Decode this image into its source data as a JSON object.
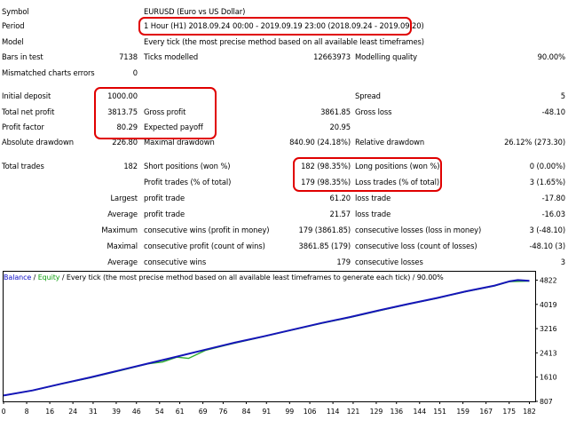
{
  "report": {
    "symbol_label": "Symbol",
    "symbol_value": "EURUSD (Euro vs US Dollar)",
    "period_label": "Period",
    "period_value": "1 Hour (H1) 2018.09.24 00:00 - 2019.09.19 23:00 (2018.09.24 - 2019.09.20)",
    "model_label": "Model",
    "model_value": "Every tick (the most precise method based on all available least timeframes)",
    "bars_label": "Bars in test",
    "bars_value": "7138",
    "ticks_label": "Ticks modelled",
    "ticks_value": "12663973",
    "quality_label": "Modelling quality",
    "quality_value": "90.00%",
    "mismatch_label": "Mismatched charts errors",
    "mismatch_value": "0",
    "deposit_label": "Initial deposit",
    "deposit_value": "1000.00",
    "spread_label": "Spread",
    "spread_value": "5",
    "netprofit_label": "Total net profit",
    "netprofit_value": "3813.75",
    "grossprofit_label": "Gross profit",
    "grossprofit_value": "3861.85",
    "grossloss_label": "Gross loss",
    "grossloss_value": "-48.10",
    "pf_label": "Profit factor",
    "pf_value": "80.29",
    "payoff_label": "Expected payoff",
    "payoff_value": "20.95",
    "absdd_label": "Absolute drawdown",
    "absdd_value": "226.80",
    "maxdd_label": "Maximal drawdown",
    "maxdd_value": "840.90 (24.18%)",
    "reldd_label": "Relative drawdown",
    "reldd_value": "26.12% (273.30)",
    "trades_label": "Total trades",
    "trades_value": "182",
    "short_label": "Short positions (won %)",
    "short_value": "182 (98.35%)",
    "long_label": "Long positions (won %)",
    "long_value": "0 (0.00%)",
    "profit_trades_label": "Profit trades (% of total)",
    "profit_trades_value": "179 (98.35%)",
    "loss_trades_label": "Loss trades (% of total)",
    "loss_trades_value": "3 (1.65%)",
    "largest_label": "Largest",
    "largest_profit_label": "profit trade",
    "largest_profit_value": "61.20",
    "largest_loss_label": "loss trade",
    "largest_loss_value": "-17.80",
    "average_label": "Average",
    "average_profit_label": "profit trade",
    "average_profit_value": "21.57",
    "average_loss_label": "loss trade",
    "average_loss_value": "-16.03",
    "maximum_label": "Maximum",
    "max_cons_wins_label": "consecutive wins (profit in money)",
    "max_cons_wins_value": "179 (3861.85)",
    "max_cons_losses_label": "consecutive losses (loss in money)",
    "max_cons_losses_value": "3 (-48.10)",
    "maximal_label": "Maximal",
    "maximal_cons_profit_label": "consecutive profit (count of wins)",
    "maximal_cons_profit_value": "3861.85 (179)",
    "maximal_cons_loss_label": "consecutive loss (count of losses)",
    "maximal_cons_loss_value": "-48.10 (3)",
    "avg_cons_label": "Average",
    "avg_cons_wins_label": "consecutive wins",
    "avg_cons_wins_value": "179",
    "avg_cons_losses_label": "consecutive losses",
    "avg_cons_losses_value": "3"
  },
  "chart_legend": {
    "balance": "Balance",
    "sep1": " / ",
    "equity": "Equity",
    "rest": " / Every tick (the most precise method based on all available least timeframes to generate each tick) / 90.00%"
  },
  "chart_data": {
    "type": "line",
    "x_ticks": [
      "0",
      "8",
      "16",
      "24",
      "31",
      "39",
      "46",
      "54",
      "61",
      "69",
      "76",
      "84",
      "91",
      "99",
      "106",
      "114",
      "121",
      "129",
      "136",
      "144",
      "151",
      "159",
      "167",
      "175",
      "182"
    ],
    "y_ticks": [
      "4822",
      "4019",
      "3216",
      "2413",
      "1610",
      "807"
    ],
    "xlim": [
      0,
      184
    ],
    "ylim": [
      807,
      5100
    ],
    "series": [
      {
        "name": "Balance",
        "color": "#1515b8",
        "x": [
          0,
          10,
          20,
          30,
          40,
          50,
          60,
          70,
          80,
          90,
          100,
          110,
          120,
          130,
          140,
          150,
          160,
          170,
          175,
          178,
          182
        ],
        "y": [
          1000,
          1170,
          1390,
          1600,
          1830,
          2060,
          2290,
          2520,
          2750,
          2960,
          3180,
          3400,
          3600,
          3820,
          4030,
          4230,
          4450,
          4640,
          4780,
          4825,
          4800
        ]
      },
      {
        "name": "Equity",
        "color": "#2fb02f",
        "x": [
          0,
          10,
          20,
          30,
          40,
          50,
          55,
          60,
          64,
          70,
          80,
          90,
          100,
          110,
          120,
          130,
          140,
          150,
          160,
          170,
          175,
          182
        ],
        "y": [
          1000,
          1165,
          1380,
          1590,
          1815,
          2050,
          2110,
          2270,
          2230,
          2500,
          2735,
          2950,
          3170,
          3390,
          3590,
          3810,
          4020,
          4220,
          4440,
          4630,
          4770,
          4790
        ]
      }
    ]
  },
  "colors": {
    "highlight": "#e00000",
    "balance": "#1515b8",
    "equity": "#2fb02f"
  }
}
